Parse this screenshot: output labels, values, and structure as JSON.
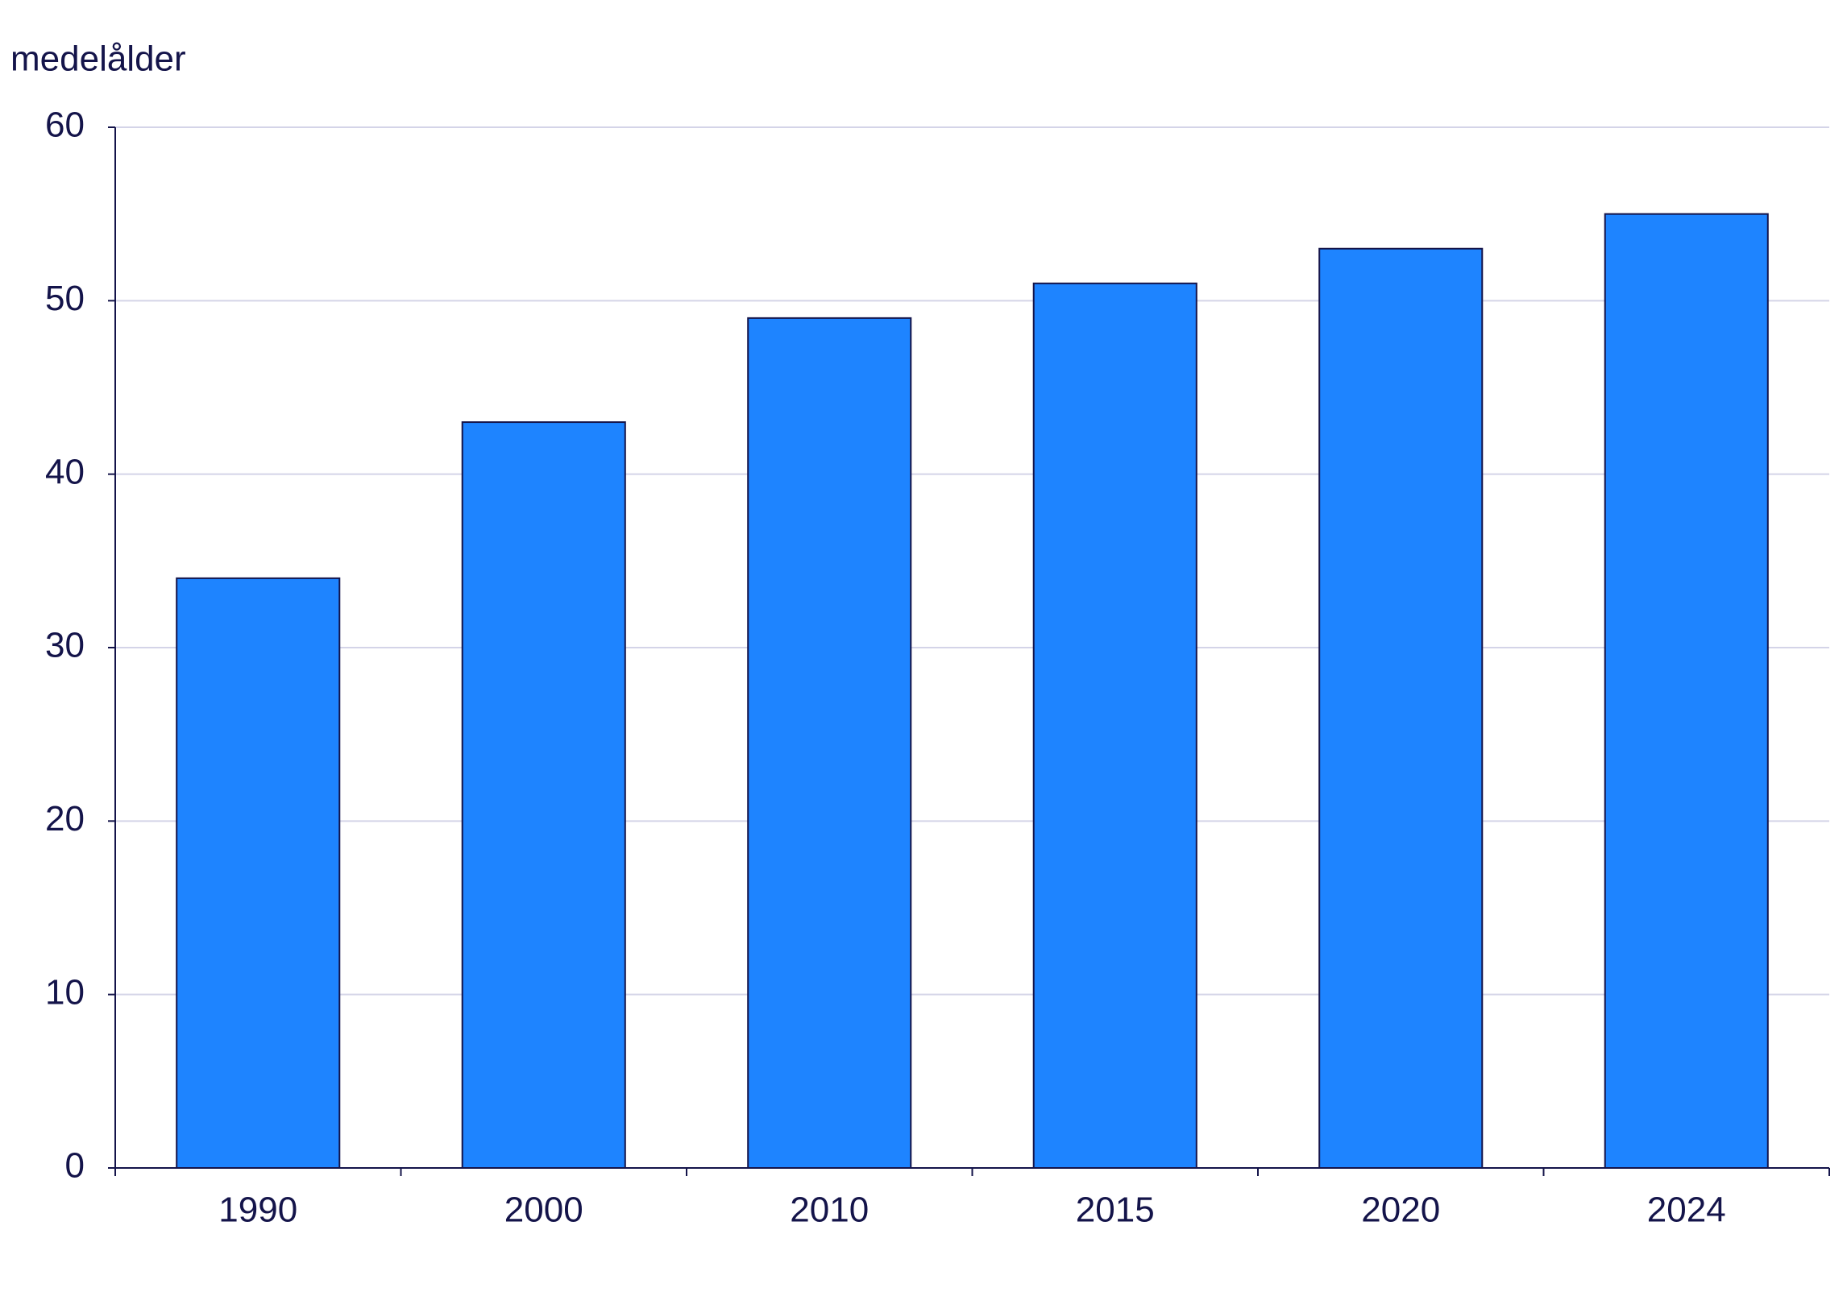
{
  "chart_data": {
    "type": "bar",
    "y_label": "medelålder",
    "categories": [
      "1990",
      "2000",
      "2010",
      "2015",
      "2020",
      "2024"
    ],
    "values": [
      34,
      43,
      49,
      51,
      53,
      55
    ],
    "color": "#1e84ff",
    "ylim": [
      0,
      60
    ],
    "yticks": [
      0,
      10,
      20,
      30,
      40,
      50,
      60
    ],
    "grid": true
  }
}
